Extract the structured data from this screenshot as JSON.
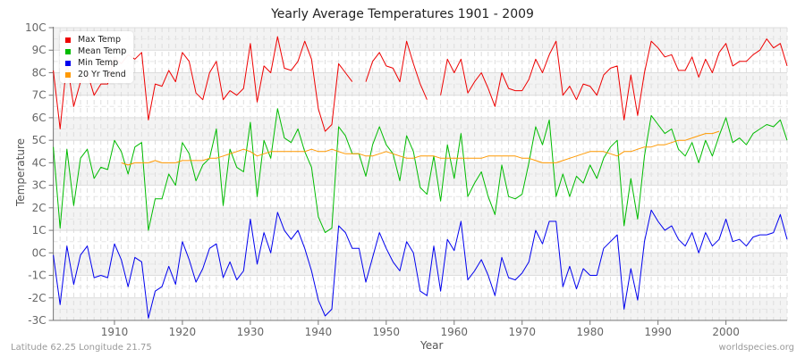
{
  "title": "Yearly Average Temperatures 1901 - 2009",
  "footer": {
    "location": "Latitude 62.25 Longitude 21.75",
    "source": "worldspecies.org"
  },
  "axes": {
    "xlabel": "Year",
    "ylabel": "Temperature"
  },
  "legend": [
    {
      "label": "Max Temp",
      "color": "#ee0000"
    },
    {
      "label": "Mean Temp",
      "color": "#00bb00"
    },
    {
      "label": "Min Temp",
      "color": "#0000ee"
    },
    {
      "label": "20 Yr Trend",
      "color": "#ff9900"
    }
  ],
  "chart_data": {
    "type": "line",
    "title": "Yearly Average Temperatures 1901 - 2009",
    "xlabel": "Year",
    "ylabel": "Temperature",
    "xlim": [
      1901,
      2009
    ],
    "ylim": [
      -3,
      10
    ],
    "x_ticks": [
      1910,
      1920,
      1930,
      1940,
      1950,
      1960,
      1970,
      1980,
      1990,
      2000
    ],
    "y_ticks": [
      "-3C",
      "-2C",
      "-1C",
      "0C",
      "1C",
      "2C",
      "3C",
      "4C",
      "5C",
      "6C",
      "7C",
      "8C",
      "9C",
      "10C"
    ],
    "grid": true,
    "legend_position": "top-left",
    "x_start": 1901,
    "series": [
      {
        "name": "Max Temp",
        "color": "#ee0000",
        "values": [
          8.1,
          5.5,
          8.5,
          6.5,
          7.6,
          8.0,
          7.0,
          7.5,
          7.5,
          8.7,
          8.4,
          8.8,
          8.6,
          8.9,
          5.9,
          7.5,
          7.4,
          8.1,
          7.6,
          8.9,
          8.5,
          7.1,
          6.8,
          8.0,
          8.5,
          6.8,
          7.2,
          7.0,
          7.3,
          9.3,
          6.7,
          8.3,
          8.0,
          9.6,
          8.2,
          8.1,
          8.5,
          9.4,
          8.6,
          6.4,
          5.4,
          5.7,
          8.4,
          8.0,
          7.6,
          null,
          7.6,
          8.5,
          8.9,
          8.3,
          8.2,
          7.6,
          9.4,
          8.4,
          7.5,
          6.8,
          null,
          7.0,
          8.6,
          8.0,
          8.6,
          7.1,
          7.6,
          8.0,
          7.3,
          6.5,
          8.0,
          7.3,
          7.2,
          7.2,
          7.7,
          8.6,
          8.0,
          8.8,
          9.4,
          7.0,
          7.4,
          6.8,
          7.5,
          7.4,
          7.0,
          7.9,
          8.2,
          8.3,
          5.9,
          7.9,
          6.1,
          8.0,
          9.4,
          9.1,
          8.7,
          8.8,
          8.1,
          8.1,
          8.7,
          7.8,
          8.6,
          8.0,
          8.9,
          9.3,
          8.3,
          8.5,
          8.5,
          8.8,
          9.0,
          9.5,
          9.1,
          9.3,
          8.3
        ]
      },
      {
        "name": "Mean Temp",
        "color": "#00bb00",
        "values": [
          4.7,
          1.1,
          4.6,
          2.1,
          4.2,
          4.6,
          3.3,
          3.8,
          3.7,
          5.0,
          4.5,
          3.5,
          4.7,
          4.9,
          1.0,
          2.4,
          2.4,
          3.5,
          3.0,
          4.9,
          4.4,
          3.2,
          3.9,
          4.2,
          5.5,
          2.1,
          4.6,
          3.8,
          3.6,
          5.8,
          2.5,
          5.0,
          4.2,
          6.4,
          5.1,
          4.9,
          5.5,
          4.5,
          3.8,
          1.6,
          0.9,
          1.1,
          5.6,
          5.2,
          4.4,
          4.4,
          3.4,
          4.8,
          5.6,
          4.8,
          4.4,
          3.2,
          5.2,
          4.5,
          2.9,
          2.6,
          4.3,
          2.3,
          4.8,
          3.3,
          5.3,
          2.5,
          3.1,
          3.6,
          2.5,
          1.7,
          3.9,
          2.5,
          2.4,
          2.6,
          4.0,
          5.6,
          4.8,
          5.9,
          2.5,
          3.5,
          2.5,
          3.4,
          3.1,
          3.9,
          3.3,
          4.2,
          4.7,
          5.0,
          1.2,
          3.3,
          1.5,
          4.3,
          6.1,
          5.7,
          5.3,
          5.5,
          4.6,
          4.3,
          4.9,
          4.0,
          5.0,
          4.3,
          5.2,
          6.0,
          4.9,
          5.1,
          4.8,
          5.3,
          5.5,
          5.7,
          5.6,
          5.9,
          5.0
        ]
      },
      {
        "name": "Min Temp",
        "color": "#0000ee",
        "values": [
          -0.1,
          -2.3,
          0.3,
          -1.4,
          -0.1,
          0.3,
          -1.1,
          -1.0,
          -1.1,
          0.4,
          -0.3,
          -1.5,
          -0.2,
          -0.4,
          -2.9,
          -1.7,
          -1.5,
          -0.6,
          -1.4,
          0.5,
          -0.3,
          -1.3,
          -0.7,
          0.2,
          0.4,
          -1.1,
          -0.4,
          -1.2,
          -0.8,
          1.5,
          -0.5,
          0.9,
          0.0,
          1.8,
          1.0,
          0.6,
          1.0,
          0.2,
          -0.8,
          -2.1,
          -2.8,
          -2.5,
          1.2,
          0.9,
          0.2,
          0.2,
          -1.3,
          -0.2,
          0.9,
          0.2,
          -0.4,
          -0.8,
          0.5,
          0.0,
          -1.7,
          -1.9,
          0.3,
          -1.7,
          0.6,
          0.1,
          1.4,
          -1.2,
          -0.8,
          -0.3,
          -1.0,
          -1.9,
          -0.2,
          -1.1,
          -1.2,
          -0.9,
          -0.4,
          1.0,
          0.4,
          1.4,
          1.4,
          -1.5,
          -0.6,
          -1.6,
          -0.7,
          -1.0,
          -1.0,
          0.2,
          0.5,
          0.8,
          -2.5,
          -0.7,
          -2.1,
          0.5,
          1.9,
          1.4,
          1.0,
          1.2,
          0.6,
          0.3,
          0.9,
          0.0,
          0.9,
          0.3,
          0.6,
          1.5,
          0.5,
          0.6,
          0.3,
          0.7,
          0.8,
          0.8,
          0.9,
          1.7,
          0.6
        ]
      },
      {
        "name": "20 Yr Trend",
        "color": "#ff9900",
        "x_start": 1911,
        "values": [
          4.0,
          3.9,
          4.0,
          4.0,
          4.0,
          4.1,
          4.0,
          4.0,
          4.0,
          4.1,
          4.1,
          4.1,
          4.1,
          4.2,
          4.2,
          4.3,
          4.4,
          4.5,
          4.6,
          4.5,
          4.3,
          4.4,
          4.5,
          4.5,
          4.5,
          4.5,
          4.5,
          4.5,
          4.6,
          4.5,
          4.5,
          4.6,
          4.5,
          4.4,
          4.4,
          4.4,
          4.3,
          4.3,
          4.4,
          4.5,
          4.4,
          4.3,
          4.2,
          4.2,
          4.3,
          4.3,
          4.3,
          4.2,
          4.2,
          4.2,
          4.2,
          4.2,
          4.2,
          4.2,
          4.3,
          4.3,
          4.3,
          4.3,
          4.3,
          4.2,
          4.2,
          4.1,
          4.0,
          4.0,
          4.0,
          4.1,
          4.2,
          4.3,
          4.4,
          4.5,
          4.5,
          4.5,
          4.4,
          4.3,
          4.5,
          4.5,
          4.6,
          4.7,
          4.7,
          4.8,
          4.8,
          4.9,
          5.0,
          5.0,
          5.1,
          5.2,
          5.3,
          5.3,
          5.4
        ]
      }
    ]
  }
}
